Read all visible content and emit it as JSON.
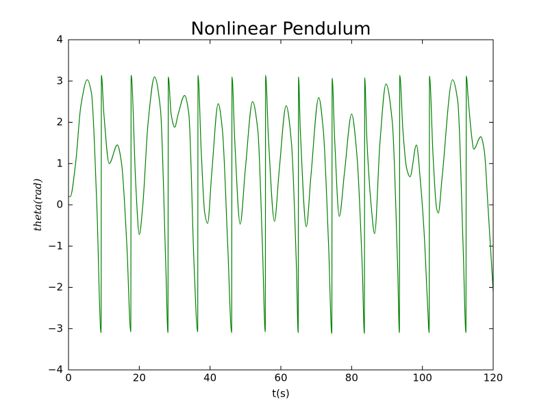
{
  "chart_data": {
    "type": "line",
    "title": "Nonlinear Pendulum",
    "x_label": "t(s)",
    "y_label": "theta(rad)",
    "x": [
      0,
      0.5,
      2,
      3.5,
      5.3,
      6.5,
      8,
      9.2,
      9.3,
      10,
      11.5,
      13.8,
      15,
      16.5,
      17.6,
      17.7,
      19,
      20,
      21,
      22.5,
      24.3,
      26,
      27.5,
      28.1,
      28.2,
      29,
      30,
      31,
      32.8,
      34,
      35.5,
      36.5,
      36.6,
      37.5,
      38.5,
      39.3,
      40.5,
      42.3,
      43.5,
      45,
      46.1,
      46.2,
      47,
      48.5,
      50,
      52,
      53.5,
      54.8,
      55.6,
      55.7,
      56.5,
      58.2,
      59.5,
      61.5,
      63,
      64.4,
      64.9,
      65,
      65.5,
      67.2,
      68.5,
      70.7,
      72,
      73.5,
      74.4,
      74.5,
      75.2,
      76.5,
      78,
      80,
      81.5,
      83,
      83.6,
      83.7,
      84.3,
      85.5,
      86.5,
      88,
      89.7,
      91.5,
      93,
      93.5,
      93.6,
      94.5,
      95.5,
      96.5,
      98.3,
      99.5,
      100.5,
      101.5,
      101.9,
      102,
      103,
      104,
      104.5,
      105.5,
      108.5,
      110,
      111.5,
      112.3,
      112.4,
      113,
      114,
      114.5,
      116.5,
      117.5,
      118.5,
      120
    ],
    "series": [
      {
        "name": "theta",
        "color": "#008000",
        "values": [
          0.2,
          0.2,
          1.0,
          2.4,
          3.03,
          2.7,
          0,
          -3.1,
          3.14,
          2.2,
          1.0,
          1.45,
          1.0,
          -1.0,
          -3.08,
          3.14,
          0.5,
          -0.72,
          0,
          2.0,
          3.1,
          2.3,
          -1.5,
          -3.1,
          3.1,
          2.2,
          1.88,
          2.2,
          2.65,
          2.2,
          -1.5,
          -3.08,
          3.14,
          1.3,
          -0.2,
          -0.45,
          0.8,
          2.45,
          1.8,
          -1,
          -3.1,
          3.1,
          1.5,
          -0.47,
          0.9,
          2.5,
          1.8,
          -1,
          -3.08,
          3.14,
          1.6,
          -0.4,
          0.8,
          2.4,
          1.5,
          -1.5,
          -3.1,
          3.1,
          1.8,
          -0.53,
          0.7,
          2.6,
          1.8,
          -1.0,
          -3.12,
          3.07,
          1.6,
          -0.28,
          0.8,
          2.2,
          1.2,
          -1.5,
          -3.12,
          3.08,
          1.6,
          0,
          -0.7,
          1.5,
          2.93,
          2.0,
          -1.5,
          -3.1,
          3.14,
          1.8,
          0.9,
          0.68,
          1.45,
          0.5,
          -0.7,
          -2.5,
          -3.1,
          3.12,
          1.2,
          -0.08,
          -0.2,
          0.6,
          3.03,
          2.5,
          -1.0,
          -3.1,
          3.12,
          2.5,
          1.6,
          1.35,
          1.65,
          1.3,
          0,
          -2.1
        ]
      }
    ],
    "xlim": [
      0,
      120
    ],
    "xticks": [
      0,
      20,
      40,
      60,
      80,
      100,
      120
    ],
    "ylim": [
      -4,
      4
    ],
    "yticks": [
      {
        "value": -4,
        "label": "−4"
      },
      {
        "value": -3,
        "label": "−3"
      },
      {
        "value": -2,
        "label": "−2"
      },
      {
        "value": -1,
        "label": "−1"
      },
      0,
      1,
      2,
      3,
      4
    ]
  }
}
